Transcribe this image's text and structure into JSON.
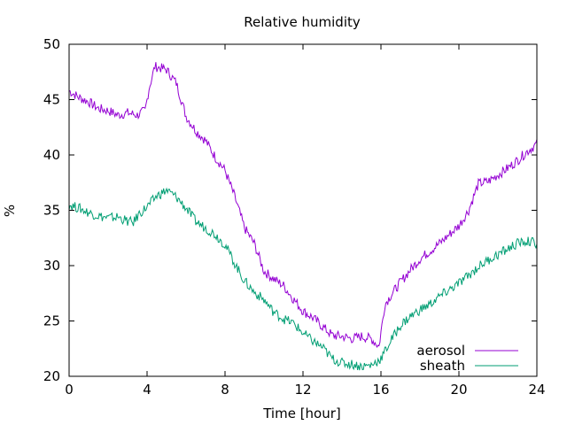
{
  "chart_data": {
    "type": "line",
    "title": "Relative humidity",
    "xlabel": "Time [hour]",
    "ylabel": "%",
    "xlim": [
      0,
      24
    ],
    "ylim": [
      20,
      50
    ],
    "xticks": [
      0,
      4,
      8,
      12,
      16,
      20,
      24
    ],
    "yticks": [
      20,
      25,
      30,
      35,
      40,
      45,
      50
    ],
    "grid": false,
    "legend_position": "bottom-right",
    "series": [
      {
        "name": "aerosol",
        "color": "#9400d3",
        "points": [
          [
            0,
            45.8
          ],
          [
            0.5,
            45.2
          ],
          [
            1,
            44.8
          ],
          [
            1.5,
            44.2
          ],
          [
            2,
            44.0
          ],
          [
            2.5,
            43.6
          ],
          [
            3,
            43.8
          ],
          [
            3.5,
            43.6
          ],
          [
            3.9,
            44.0
          ],
          [
            4.1,
            46.0
          ],
          [
            4.4,
            48.0
          ],
          [
            5,
            47.7
          ],
          [
            5.5,
            46.5
          ],
          [
            6,
            43.5
          ],
          [
            6.5,
            42.2
          ],
          [
            7,
            41.3
          ],
          [
            7.5,
            39.8
          ],
          [
            8,
            38.6
          ],
          [
            8.5,
            36.2
          ],
          [
            9,
            33.4
          ],
          [
            9.5,
            32.0
          ],
          [
            10,
            29.5
          ],
          [
            10.5,
            28.8
          ],
          [
            11,
            28.2
          ],
          [
            11.5,
            27.0
          ],
          [
            12,
            25.9
          ],
          [
            12.5,
            25.3
          ],
          [
            13,
            24.5
          ],
          [
            13.5,
            23.7
          ],
          [
            14,
            23.6
          ],
          [
            14.5,
            23.4
          ],
          [
            15,
            23.6
          ],
          [
            15.5,
            23.4
          ],
          [
            15.9,
            22.7
          ],
          [
            16.2,
            26.5
          ],
          [
            16.5,
            27.3
          ],
          [
            17,
            28.5
          ],
          [
            17.5,
            29.6
          ],
          [
            18,
            30.6
          ],
          [
            18.5,
            31.3
          ],
          [
            19,
            32.0
          ],
          [
            19.5,
            32.8
          ],
          [
            20,
            33.6
          ],
          [
            20.5,
            35.0
          ],
          [
            21,
            37.4
          ],
          [
            21.5,
            37.6
          ],
          [
            22,
            38.2
          ],
          [
            22.5,
            38.8
          ],
          [
            23,
            39.5
          ],
          [
            23.5,
            40.3
          ],
          [
            24,
            41.0
          ]
        ]
      },
      {
        "name": "sheath",
        "color": "#009e73",
        "points": [
          [
            0,
            35.5
          ],
          [
            0.5,
            35.2
          ],
          [
            1,
            34.8
          ],
          [
            1.5,
            34.5
          ],
          [
            2,
            34.3
          ],
          [
            2.5,
            34.4
          ],
          [
            3,
            34.0
          ],
          [
            3.3,
            33.9
          ],
          [
            3.6,
            34.7
          ],
          [
            4,
            35.3
          ],
          [
            4.5,
            36.3
          ],
          [
            5,
            36.8
          ],
          [
            5.5,
            36.2
          ],
          [
            6,
            35.2
          ],
          [
            6.5,
            34.0
          ],
          [
            7,
            33.4
          ],
          [
            7.5,
            32.8
          ],
          [
            8,
            31.9
          ],
          [
            8.5,
            30.2
          ],
          [
            9,
            28.6
          ],
          [
            9.5,
            27.6
          ],
          [
            10,
            26.9
          ],
          [
            10.5,
            25.8
          ],
          [
            11,
            25.2
          ],
          [
            11.5,
            24.8
          ],
          [
            12,
            23.9
          ],
          [
            12.5,
            23.2
          ],
          [
            13,
            22.6
          ],
          [
            13.5,
            21.6
          ],
          [
            14,
            21.2
          ],
          [
            14.5,
            21.1
          ],
          [
            15,
            20.9
          ],
          [
            15.5,
            21.0
          ],
          [
            16,
            21.6
          ],
          [
            16.5,
            23.2
          ],
          [
            17,
            24.6
          ],
          [
            17.5,
            25.4
          ],
          [
            18,
            26.0
          ],
          [
            18.5,
            26.5
          ],
          [
            19,
            27.2
          ],
          [
            19.5,
            27.8
          ],
          [
            20,
            28.4
          ],
          [
            20.5,
            29.1
          ],
          [
            21,
            29.9
          ],
          [
            21.5,
            30.5
          ],
          [
            22,
            31.0
          ],
          [
            22.5,
            31.5
          ],
          [
            23,
            32.0
          ],
          [
            23.5,
            32.2
          ],
          [
            24,
            32.0
          ]
        ]
      }
    ]
  }
}
